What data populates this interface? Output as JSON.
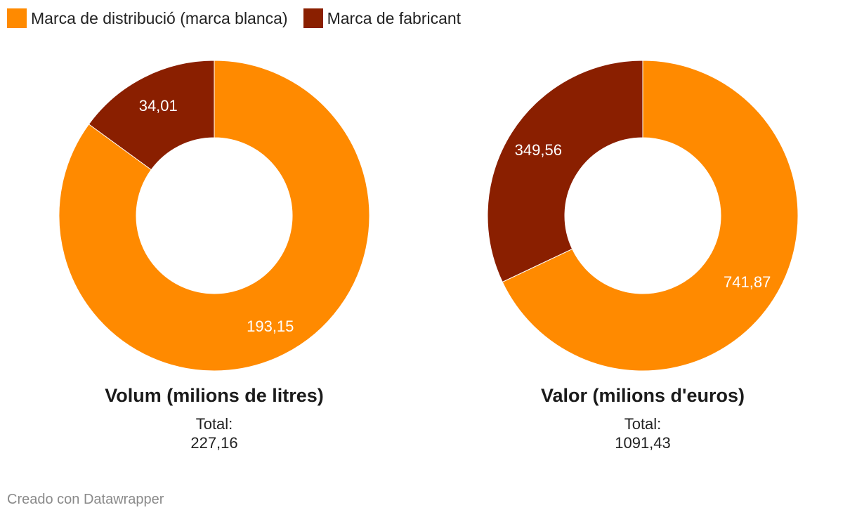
{
  "legend": {
    "items": [
      {
        "label": "Marca de distribució (marca blanca)",
        "color": "#ff8a00"
      },
      {
        "label": "Marca de fabricant",
        "color": "#8a1f00"
      }
    ]
  },
  "chart_data": [
    {
      "type": "pie",
      "title": "Volum (milions de litres)",
      "total_label": "Total:",
      "total_value": "227,16",
      "slices": [
        {
          "name": "Marca de distribució (marca blanca)",
          "value": 193.15,
          "label": "193,15",
          "color": "#ff8a00"
        },
        {
          "name": "Marca de fabricant",
          "value": 34.01,
          "label": "34,01",
          "color": "#8a1f00"
        }
      ]
    },
    {
      "type": "pie",
      "title": "Valor (milions d'euros)",
      "total_label": "Total:",
      "total_value": "1091,43",
      "slices": [
        {
          "name": "Marca de distribució (marca blanca)",
          "value": 741.87,
          "label": "741,87",
          "color": "#ff8a00"
        },
        {
          "name": "Marca de fabricant",
          "value": 349.56,
          "label": "349,56",
          "color": "#8a1f00"
        }
      ]
    }
  ],
  "footer": {
    "credit": "Creado con Datawrapper"
  }
}
